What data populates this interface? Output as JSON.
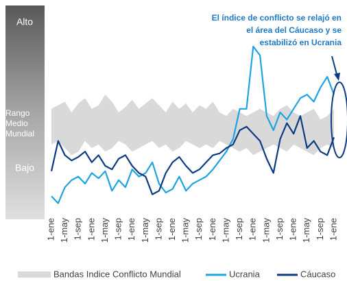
{
  "chart_data": {
    "type": "line",
    "annotation": [
      "El índice de conflicto se relajó en",
      "el área del Cáucaso y se",
      "estabilizó en Ucrania"
    ],
    "scale_labels": {
      "high": "Alto",
      "mid": [
        "Rango",
        "Medio",
        "Mundial"
      ],
      "low": "Bajo"
    },
    "categories": [
      "1-ene",
      null,
      "1-may",
      null,
      "1-sep",
      null,
      "1-ene",
      null,
      "1-may",
      null,
      "1-sep",
      null,
      "1-ene",
      null,
      "1-may",
      null,
      "1-sep",
      null,
      "1-ene",
      null,
      "1-may",
      null,
      "1-sep",
      null,
      "1-ene",
      null,
      "1-may",
      null,
      "1-sep",
      null,
      "1-ene",
      null,
      "1-may",
      null,
      "1-sep",
      null,
      "1-ene",
      null,
      "1-may",
      null,
      "1-sep",
      null,
      "1-ene"
    ],
    "ylim": [
      0,
      100
    ],
    "band": {
      "name": "Bandas Indice Conflicto Mundial",
      "color": "#d9d9d9",
      "upper": [
        62,
        64,
        66,
        60,
        65,
        68,
        62,
        64,
        70,
        66,
        60,
        63,
        67,
        62,
        65,
        68,
        64,
        60,
        66,
        62,
        65,
        60,
        64,
        62,
        66,
        60,
        58,
        62,
        60,
        58,
        60,
        62,
        60,
        58,
        62,
        64,
        60,
        58,
        60,
        62,
        56,
        58,
        62
      ],
      "lower": [
        42,
        44,
        40,
        36,
        38,
        44,
        40,
        42,
        38,
        40,
        44,
        42,
        38,
        40,
        42,
        44,
        40,
        42,
        38,
        40,
        44,
        42,
        40,
        42,
        40,
        44,
        42,
        40,
        38,
        40,
        36,
        38,
        40,
        42,
        40,
        38,
        42,
        40,
        38,
        36,
        40,
        42,
        40
      ]
    },
    "series": [
      {
        "name": "Ucrania",
        "color": "#1fa3e0",
        "values": [
          13,
          9,
          18,
          22,
          24,
          20,
          26,
          23,
          27,
          16,
          22,
          18,
          28,
          24,
          26,
          32,
          20,
          15,
          17,
          24,
          16,
          20,
          22,
          24,
          28,
          33,
          38,
          45,
          62,
          62,
          97,
          92,
          58,
          50,
          60,
          56,
          62,
          68,
          70,
          66,
          74,
          80,
          70
        ]
      },
      {
        "name": "Cáucaso",
        "color": "#0b3a82",
        "values": [
          27,
          44,
          36,
          33,
          35,
          38,
          32,
          36,
          30,
          28,
          34,
          36,
          30,
          26,
          24,
          14,
          16,
          26,
          32,
          35,
          30,
          26,
          28,
          32,
          36,
          37,
          40,
          42,
          50,
          52,
          48,
          44,
          34,
          26,
          45,
          54,
          48,
          58,
          40,
          44,
          38,
          36,
          46
        ]
      }
    ]
  }
}
